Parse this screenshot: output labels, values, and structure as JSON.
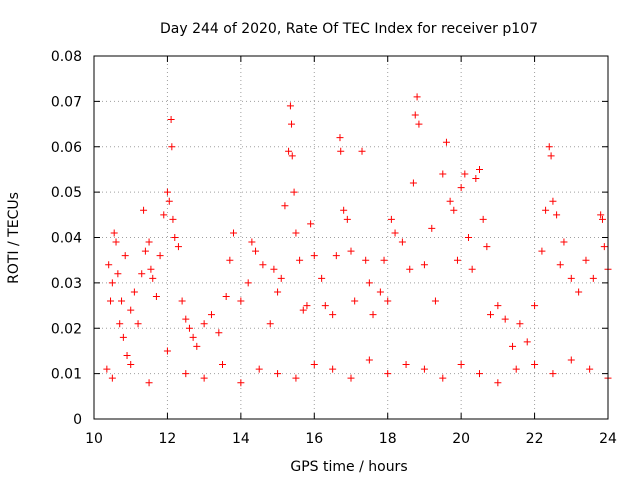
{
  "chart_data": {
    "type": "scatter",
    "title": "Day 244 of 2020, Rate Of TEC Index for receiver p107",
    "xlabel": "GPS time / hours",
    "ylabel": "ROTI / TECUs",
    "xlim": [
      10,
      24
    ],
    "ylim": [
      0,
      0.08
    ],
    "grid": true,
    "marker": "+",
    "marker_color": "#ff0000",
    "x_ticks": [
      10,
      12,
      14,
      16,
      18,
      20,
      22,
      24
    ],
    "x_tick_labels": [
      "10",
      "12",
      "14",
      "16",
      "18",
      "20",
      "22",
      "24"
    ],
    "y_ticks": [
      0,
      0.01,
      0.02,
      0.03,
      0.04,
      0.05,
      0.06,
      0.07,
      0.08
    ],
    "y_tick_labels": [
      "0",
      "0.01",
      "0.02",
      "0.03",
      "0.04",
      "0.05",
      "0.06",
      "0.07",
      "0.08"
    ],
    "series": [
      {
        "name": "p107",
        "points": [
          [
            10.35,
            0.011
          ],
          [
            10.4,
            0.034
          ],
          [
            10.45,
            0.026
          ],
          [
            10.5,
            0.03
          ],
          [
            10.55,
            0.041
          ],
          [
            10.6,
            0.039
          ],
          [
            10.65,
            0.032
          ],
          [
            10.7,
            0.021
          ],
          [
            10.75,
            0.026
          ],
          [
            10.8,
            0.018
          ],
          [
            10.85,
            0.036
          ],
          [
            10.9,
            0.014
          ],
          [
            11.0,
            0.024
          ],
          [
            11.1,
            0.028
          ],
          [
            11.2,
            0.021
          ],
          [
            11.3,
            0.032
          ],
          [
            11.35,
            0.046
          ],
          [
            11.4,
            0.037
          ],
          [
            11.5,
            0.039
          ],
          [
            11.55,
            0.033
          ],
          [
            11.6,
            0.031
          ],
          [
            11.7,
            0.027
          ],
          [
            11.8,
            0.036
          ],
          [
            11.9,
            0.045
          ],
          [
            12.0,
            0.05
          ],
          [
            12.05,
            0.048
          ],
          [
            12.1,
            0.066
          ],
          [
            12.12,
            0.06
          ],
          [
            12.15,
            0.044
          ],
          [
            12.2,
            0.04
          ],
          [
            12.3,
            0.038
          ],
          [
            12.4,
            0.026
          ],
          [
            12.5,
            0.022
          ],
          [
            12.6,
            0.02
          ],
          [
            12.7,
            0.018
          ],
          [
            12.8,
            0.016
          ],
          [
            13.0,
            0.021
          ],
          [
            13.2,
            0.023
          ],
          [
            13.4,
            0.019
          ],
          [
            13.6,
            0.027
          ],
          [
            13.7,
            0.035
          ],
          [
            13.8,
            0.041
          ],
          [
            14.0,
            0.026
          ],
          [
            14.2,
            0.03
          ],
          [
            14.3,
            0.039
          ],
          [
            14.4,
            0.037
          ],
          [
            14.6,
            0.034
          ],
          [
            14.8,
            0.021
          ],
          [
            14.9,
            0.033
          ],
          [
            15.0,
            0.028
          ],
          [
            15.1,
            0.031
          ],
          [
            15.2,
            0.047
          ],
          [
            15.3,
            0.059
          ],
          [
            15.35,
            0.069
          ],
          [
            15.38,
            0.065
          ],
          [
            15.4,
            0.058
          ],
          [
            15.45,
            0.05
          ],
          [
            15.5,
            0.041
          ],
          [
            15.6,
            0.035
          ],
          [
            15.7,
            0.024
          ],
          [
            15.8,
            0.025
          ],
          [
            15.9,
            0.043
          ],
          [
            16.0,
            0.036
          ],
          [
            16.2,
            0.031
          ],
          [
            16.3,
            0.025
          ],
          [
            16.5,
            0.023
          ],
          [
            16.6,
            0.036
          ],
          [
            16.7,
            0.062
          ],
          [
            16.72,
            0.059
          ],
          [
            16.8,
            0.046
          ],
          [
            16.9,
            0.044
          ],
          [
            17.0,
            0.037
          ],
          [
            17.1,
            0.026
          ],
          [
            17.3,
            0.059
          ],
          [
            17.4,
            0.035
          ],
          [
            17.5,
            0.03
          ],
          [
            17.6,
            0.023
          ],
          [
            17.8,
            0.028
          ],
          [
            17.9,
            0.035
          ],
          [
            18.0,
            0.026
          ],
          [
            18.1,
            0.044
          ],
          [
            18.2,
            0.041
          ],
          [
            18.4,
            0.039
          ],
          [
            18.6,
            0.033
          ],
          [
            18.7,
            0.052
          ],
          [
            18.75,
            0.067
          ],
          [
            18.8,
            0.071
          ],
          [
            18.85,
            0.065
          ],
          [
            19.0,
            0.034
          ],
          [
            19.2,
            0.042
          ],
          [
            19.3,
            0.026
          ],
          [
            19.5,
            0.054
          ],
          [
            19.6,
            0.061
          ],
          [
            19.7,
            0.048
          ],
          [
            19.8,
            0.046
          ],
          [
            19.9,
            0.035
          ],
          [
            20.0,
            0.051
          ],
          [
            20.1,
            0.054
          ],
          [
            20.2,
            0.04
          ],
          [
            20.3,
            0.033
          ],
          [
            20.4,
            0.053
          ],
          [
            20.5,
            0.055
          ],
          [
            20.6,
            0.044
          ],
          [
            20.7,
            0.038
          ],
          [
            20.8,
            0.023
          ],
          [
            21.0,
            0.025
          ],
          [
            21.2,
            0.022
          ],
          [
            21.4,
            0.016
          ],
          [
            21.6,
            0.021
          ],
          [
            21.8,
            0.017
          ],
          [
            22.0,
            0.025
          ],
          [
            22.2,
            0.037
          ],
          [
            22.3,
            0.046
          ],
          [
            22.4,
            0.06
          ],
          [
            22.45,
            0.058
          ],
          [
            22.5,
            0.048
          ],
          [
            22.6,
            0.045
          ],
          [
            22.7,
            0.034
          ],
          [
            22.8,
            0.039
          ],
          [
            23.0,
            0.031
          ],
          [
            23.2,
            0.028
          ],
          [
            23.4,
            0.035
          ],
          [
            23.6,
            0.031
          ],
          [
            23.8,
            0.045
          ],
          [
            23.85,
            0.044
          ],
          [
            23.9,
            0.038
          ],
          [
            24.0,
            0.033
          ],
          [
            10.5,
            0.009
          ],
          [
            11.0,
            0.012
          ],
          [
            11.5,
            0.008
          ],
          [
            12.0,
            0.015
          ],
          [
            12.5,
            0.01
          ],
          [
            13.0,
            0.009
          ],
          [
            13.5,
            0.012
          ],
          [
            14.0,
            0.008
          ],
          [
            14.5,
            0.011
          ],
          [
            15.0,
            0.01
          ],
          [
            15.5,
            0.009
          ],
          [
            16.0,
            0.012
          ],
          [
            16.5,
            0.011
          ],
          [
            17.0,
            0.009
          ],
          [
            17.5,
            0.013
          ],
          [
            18.0,
            0.01
          ],
          [
            18.5,
            0.012
          ],
          [
            19.0,
            0.011
          ],
          [
            19.5,
            0.009
          ],
          [
            20.0,
            0.012
          ],
          [
            20.5,
            0.01
          ],
          [
            21.0,
            0.008
          ],
          [
            21.5,
            0.011
          ],
          [
            22.0,
            0.012
          ],
          [
            22.5,
            0.01
          ],
          [
            23.0,
            0.013
          ],
          [
            23.5,
            0.011
          ],
          [
            24.0,
            0.009
          ]
        ]
      }
    ]
  }
}
